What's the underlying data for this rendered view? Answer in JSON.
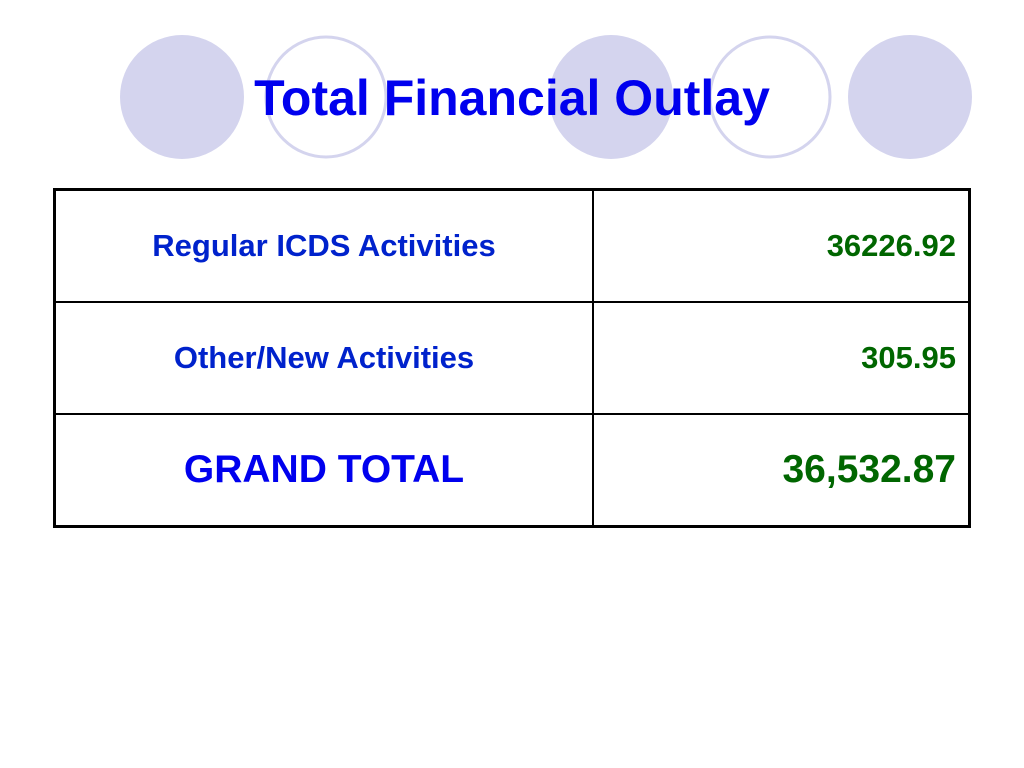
{
  "header": {
    "title": "Total Financial Outlay"
  },
  "table": {
    "rows": [
      [
        "Regular ICDS Activities",
        "36226.92"
      ],
      [
        "Other/New Activities",
        "305.95"
      ],
      [
        "GRAND TOTAL",
        "36,532.87"
      ]
    ]
  }
}
